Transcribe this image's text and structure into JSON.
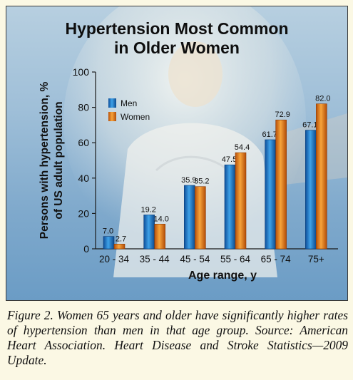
{
  "chart_data": {
    "type": "bar",
    "title_lines": [
      "Hypertension Most Common",
      "in Older Women"
    ],
    "xlabel": "Age range, y",
    "ylabel_lines": [
      "Persons with hypertension, %",
      "of US adult population"
    ],
    "ylim": [
      0,
      100
    ],
    "yticks": [
      "0",
      "20",
      "40",
      "60",
      "80",
      "100"
    ],
    "categories": [
      "20 - 34",
      "35 - 44",
      "45 - 54",
      "55 - 64",
      "65 - 74",
      "75+"
    ],
    "series": [
      {
        "name": "Men",
        "values": [
          7.0,
          19.2,
          35.9,
          47.5,
          61.7,
          67.1
        ],
        "labels": [
          "7.0",
          "19.2",
          "35.9",
          "47.5",
          "61.7",
          "67.1"
        ],
        "color": "#1f6fc0"
      },
      {
        "name": "Women",
        "values": [
          2.7,
          14.0,
          35.2,
          54.4,
          72.9,
          82.0
        ],
        "labels": [
          "2.7",
          "14.0",
          "35.2",
          "54.4",
          "72.9",
          "82.0"
        ],
        "color": "#e07a14"
      }
    ],
    "legend_placement": "top-left",
    "grid": false
  },
  "caption": "Figure 2. Women 65 years and older have significantly higher rates of hypertension than men in that age group. Source: American Heart Association. Heart Disease and Stroke Statistics—2009 Update."
}
